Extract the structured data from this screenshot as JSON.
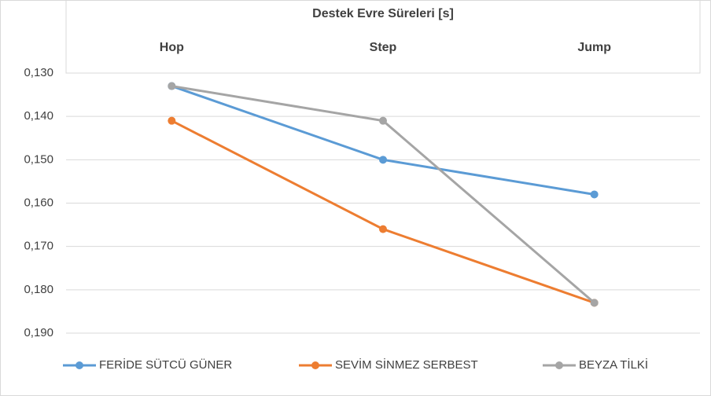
{
  "chart_data": {
    "type": "line",
    "title": "Destek Evre Süreleri  [s]",
    "categories": [
      "Hop",
      "Step",
      "Jump"
    ],
    "series": [
      {
        "name": "FERİDE SÜTCÜ GÜNER",
        "color": "#5b9bd5",
        "values": [
          0.133,
          0.15,
          0.158
        ]
      },
      {
        "name": "SEVİM SİNMEZ SERBEST",
        "color": "#ed7d31",
        "values": [
          0.141,
          0.166,
          0.183
        ]
      },
      {
        "name": "BEYZA TİLKİ",
        "color": "#a5a5a5",
        "values": [
          0.133,
          0.141,
          0.183
        ]
      }
    ],
    "ylim": [
      0.13,
      0.19
    ],
    "reversed": true,
    "yticks": [
      {
        "value": 0.13,
        "label": "0,130"
      },
      {
        "value": 0.14,
        "label": "0,140"
      },
      {
        "value": 0.15,
        "label": "0,150"
      },
      {
        "value": 0.16,
        "label": "0,160"
      },
      {
        "value": 0.17,
        "label": "0,170"
      },
      {
        "value": 0.18,
        "label": "0,180"
      },
      {
        "value": 0.19,
        "label": "0,190"
      }
    ],
    "grid": true,
    "legend": "bottom"
  }
}
